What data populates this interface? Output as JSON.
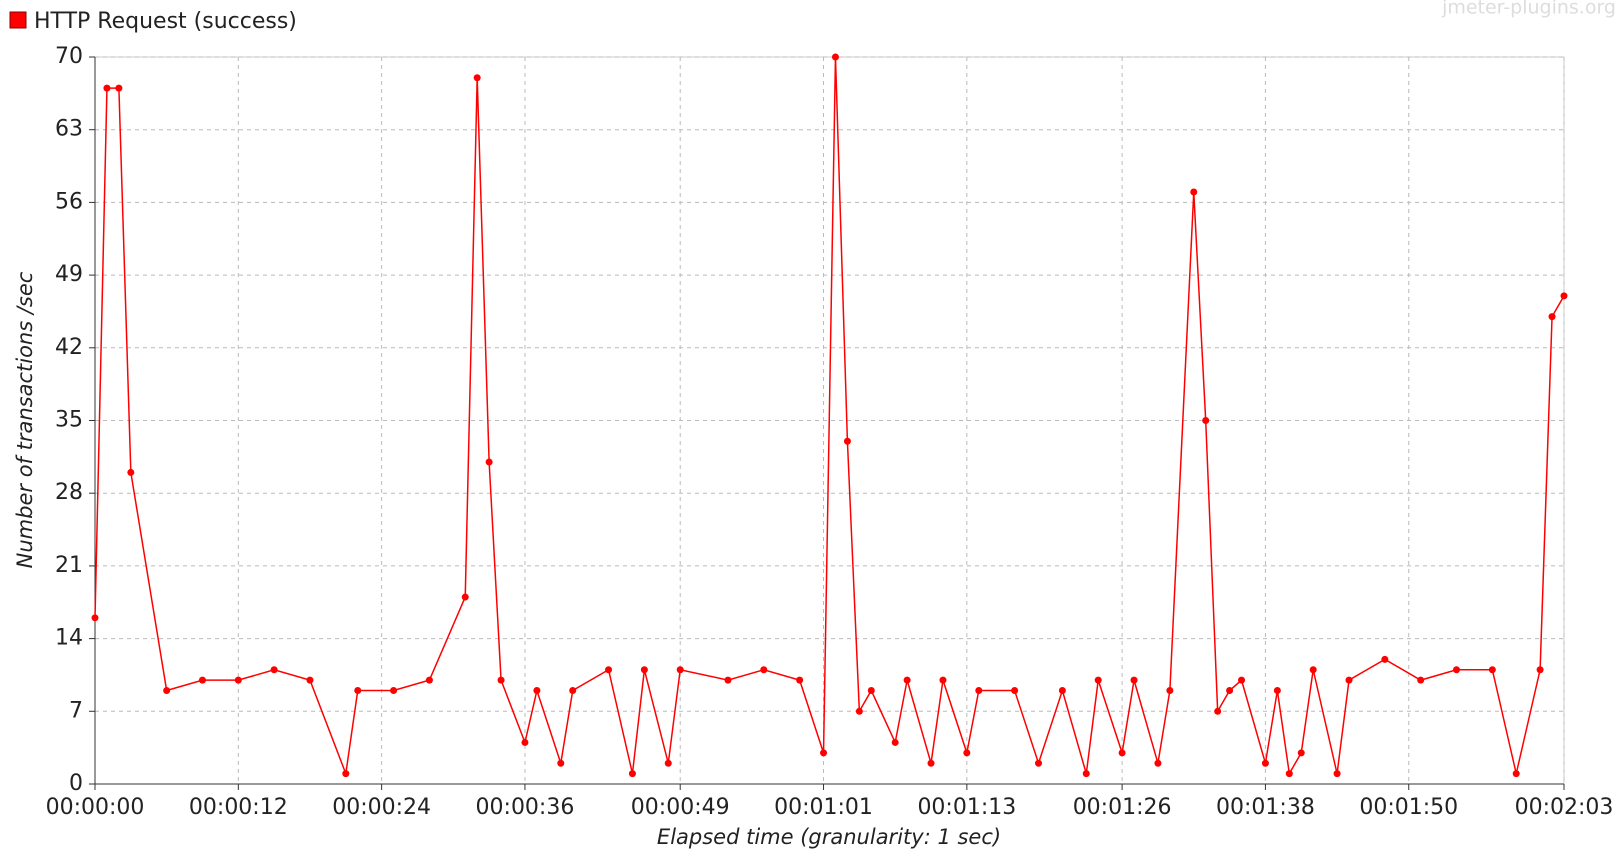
{
  "chart_data": {
    "type": "line",
    "legend_title": "HTTP Request (success)",
    "watermark": "jmeter-plugins.org",
    "xlabel": "Elapsed time (granularity: 1 sec)",
    "ylabel": "Number of transactions /sec",
    "x": [
      0,
      1,
      2,
      3,
      6,
      9,
      12,
      15,
      18,
      21,
      22,
      25,
      28,
      31,
      32,
      33,
      34,
      36,
      37,
      39,
      40,
      43,
      45,
      46,
      48,
      49,
      53,
      56,
      59,
      61,
      62,
      63,
      64,
      65,
      67,
      68,
      70,
      71,
      73,
      74,
      77,
      79,
      81,
      83,
      84,
      86,
      87,
      89,
      90,
      92,
      93,
      94,
      95,
      96,
      98,
      99,
      100,
      101,
      102,
      104,
      105,
      108,
      111,
      114,
      117,
      119,
      121,
      122,
      123
    ],
    "series": [
      {
        "name": "HTTP Request (success)",
        "color": "#ff0000",
        "values": [
          16,
          67,
          67,
          30,
          9,
          10,
          10,
          11,
          10,
          1,
          9,
          9,
          10,
          18,
          68,
          31,
          10,
          4,
          9,
          2,
          9,
          11,
          1,
          11,
          2,
          11,
          10,
          11,
          10,
          3,
          70,
          33,
          7,
          9,
          4,
          10,
          2,
          10,
          3,
          9,
          9,
          2,
          9,
          1,
          10,
          3,
          10,
          2,
          9,
          57,
          35,
          7,
          9,
          10,
          2,
          9,
          1,
          3,
          11,
          1,
          10,
          12,
          10,
          11,
          11,
          1,
          11,
          45,
          47
        ]
      }
    ],
    "xlim": [
      0,
      123
    ],
    "xticks": [
      {
        "value": 0,
        "label": "00:00:00"
      },
      {
        "value": 12,
        "label": "00:00:12"
      },
      {
        "value": 24,
        "label": "00:00:24"
      },
      {
        "value": 36,
        "label": "00:00:36"
      },
      {
        "value": 49,
        "label": "00:00:49"
      },
      {
        "value": 61,
        "label": "00:01:01"
      },
      {
        "value": 73,
        "label": "00:01:13"
      },
      {
        "value": 86,
        "label": "00:01:26"
      },
      {
        "value": 98,
        "label": "00:01:38"
      },
      {
        "value": 110,
        "label": "00:01:50"
      },
      {
        "value": 123,
        "label": "00:02:03"
      }
    ],
    "ylim": [
      0,
      70
    ],
    "yticks": [
      0,
      7,
      14,
      21,
      28,
      35,
      42,
      49,
      56,
      63,
      70
    ],
    "grid": true
  }
}
